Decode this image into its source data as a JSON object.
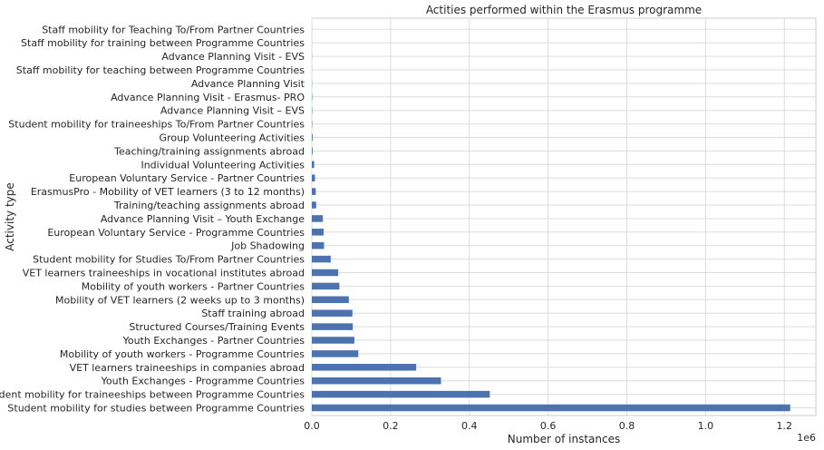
{
  "chart_data": {
    "type": "bar",
    "orientation": "horizontal",
    "title": "Actities performed within the Erasmus programme",
    "xlabel": "Number of instances",
    "ylabel": "Activity type",
    "x_offset_text": "1e6",
    "xlim": [
      0,
      1.28
    ],
    "x_ticks": [
      0.0,
      0.2,
      0.4,
      0.6,
      0.8,
      1.0,
      1.2
    ],
    "x_tick_labels": [
      "0.0",
      "0.2",
      "0.4",
      "0.6",
      "0.8",
      "1.0",
      "1.2"
    ],
    "grid": true,
    "bar_color": "#4c72b0",
    "categories": [
      "Student mobility for studies between Programme Countries",
      "Student mobility for traineeships between Programme Countries",
      "Youth Exchanges - Programme Countries",
      "VET learners traineeships in companies abroad",
      "Mobility of youth workers - Programme Countries",
      "Youth Exchanges - Partner Countries",
      "Structured Courses/Training Events",
      "Staff training abroad",
      "Mobility of VET learners (2 weeks up to 3 months)",
      "Mobility of youth workers - Partner Countries",
      "VET learners traineeships in vocational institutes abroad",
      "Student mobility for Studies To/From Partner Countries",
      "Job Shadowing",
      "European Voluntary Service - Programme Countries",
      "Advance Planning Visit – Youth Exchange",
      "Training/teaching assignments abroad",
      "ErasmusPro - Mobility of VET learners (3 to 12 months)",
      "European Voluntary Service - Partner Countries",
      "Individual Volunteering Activities",
      "Teaching/training assignments abroad",
      "Group Volunteering Activities",
      "Student mobility for traineeships To/From Partner Countries",
      "Advance Planning Visit – EVS",
      "Advance Planning Visit - Erasmus- PRO",
      "Advance Planning Visit",
      "Staff mobility for teaching between Programme Countries",
      "Advance Planning Visit - EVS",
      "Staff mobility for training between Programme Countries",
      "Staff mobility for Teaching To/From Partner Countries"
    ],
    "values": [
      1.215,
      0.452,
      0.328,
      0.265,
      0.118,
      0.108,
      0.104,
      0.103,
      0.094,
      0.07,
      0.067,
      0.048,
      0.031,
      0.03,
      0.028,
      0.011,
      0.01,
      0.008,
      0.006,
      0.002,
      0.002,
      0.001,
      0.001,
      0.001,
      0.0005,
      0.0003,
      0.0003,
      0.0002,
      0.0002
    ]
  }
}
